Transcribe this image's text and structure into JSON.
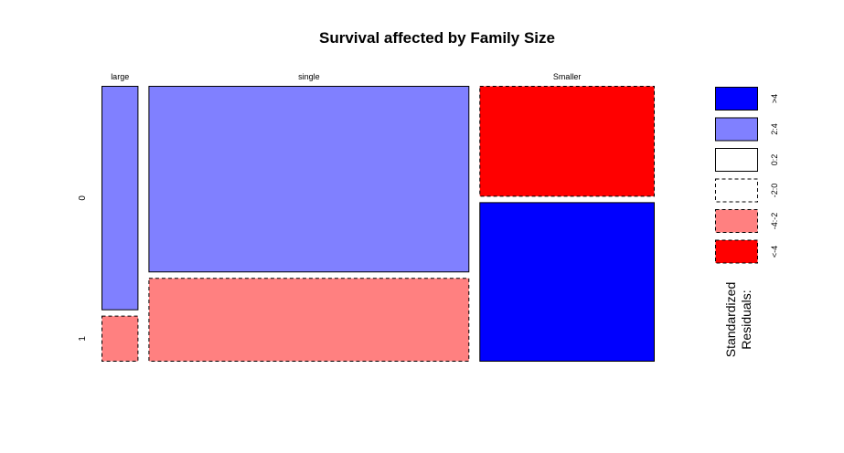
{
  "chart_data": {
    "type": "mosaic",
    "title": "Survival affected by Family Size",
    "x_variable_categories": [
      "large",
      "single",
      "Smaller"
    ],
    "y_variable_categories": [
      "0",
      "1"
    ],
    "column_widths": [
      0.067,
      0.582,
      0.318
    ],
    "cells": [
      {
        "column": "large",
        "row": "0",
        "proportion": 0.83,
        "residual_class": "2:4"
      },
      {
        "column": "large",
        "row": "1",
        "proportion": 0.17,
        "residual_class": "-4:-2"
      },
      {
        "column": "single",
        "row": "0",
        "proportion": 0.69,
        "residual_class": "2:4"
      },
      {
        "column": "single",
        "row": "1",
        "proportion": 0.31,
        "residual_class": "-4:-2"
      },
      {
        "column": "Smaller",
        "row": "0",
        "proportion": 0.41,
        "residual_class": "<-4"
      },
      {
        "column": "Smaller",
        "row": "1",
        "proportion": 0.59,
        "residual_class": ">4"
      }
    ],
    "legend": {
      "title_lines": [
        "Standardized",
        "Residuals:"
      ],
      "items": [
        {
          "label": ">4",
          "color": "#0000FF",
          "border": "solid"
        },
        {
          "label": "2:4",
          "color": "#8080FF",
          "border": "solid"
        },
        {
          "label": "0:2",
          "color": "#FFFFFF",
          "border": "solid"
        },
        {
          "label": "-2:0",
          "color": "#FFFFFF",
          "border": "dashed"
        },
        {
          "label": "-4:-2",
          "color": "#FF8080",
          "border": "dashed"
        },
        {
          "label": "<-4",
          "color": "#FF0000",
          "border": "dashed"
        }
      ]
    }
  }
}
